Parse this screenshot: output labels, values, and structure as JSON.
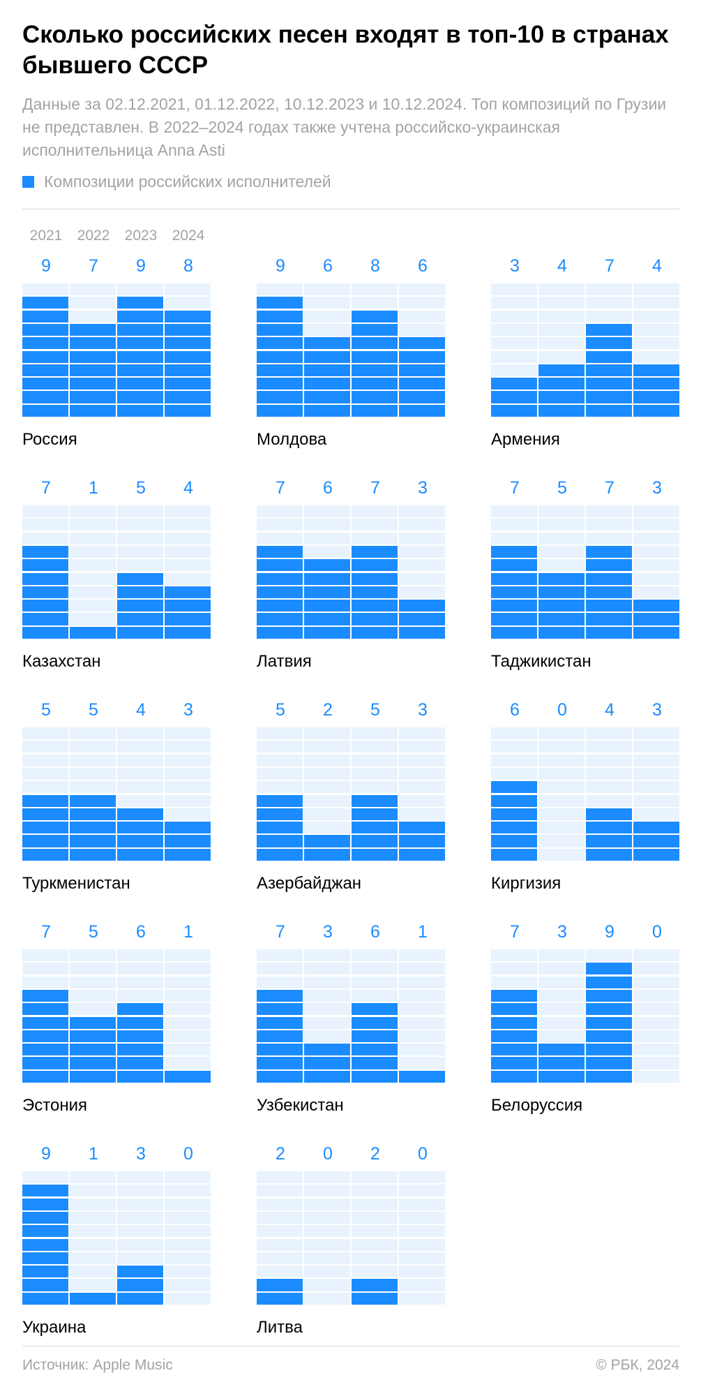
{
  "header": {
    "title": "Сколько российских песен входят в топ-10 в странах бывшего СССР",
    "subtitle": "Данные за 02.12.2021, 01.12.2022, 10.12.2023 и 10.12.2024. Топ композиций по Грузии не представлен. В 2022–2024 годах также учтена российско-украинская исполнительница Anna Asti"
  },
  "legend": {
    "label": "Композиции российских исполнителей"
  },
  "footer": {
    "source": "Источник: Apple Music",
    "copyright": "© РБК, 2024"
  },
  "colors": {
    "filled": "#1a8cff",
    "empty": "#e8f3fd"
  },
  "chart_data": {
    "type": "bar",
    "title": "Сколько российских песен входят в топ-10 в странах бывшего СССР",
    "years": [
      "2021",
      "2022",
      "2023",
      "2024"
    ],
    "ylim": [
      0,
      10
    ],
    "countries": [
      {
        "name": "Россия",
        "values": [
          9,
          7,
          9,
          8
        ]
      },
      {
        "name": "Молдова",
        "values": [
          9,
          6,
          8,
          6
        ]
      },
      {
        "name": "Армения",
        "values": [
          3,
          4,
          7,
          4
        ]
      },
      {
        "name": "Казахстан",
        "values": [
          7,
          1,
          5,
          4
        ]
      },
      {
        "name": "Латвия",
        "values": [
          7,
          6,
          7,
          3
        ]
      },
      {
        "name": "Таджикистан",
        "values": [
          7,
          5,
          7,
          3
        ]
      },
      {
        "name": "Туркменистан",
        "values": [
          5,
          5,
          4,
          3
        ]
      },
      {
        "name": "Азербайджан",
        "values": [
          5,
          2,
          5,
          3
        ]
      },
      {
        "name": "Киргизия",
        "values": [
          6,
          0,
          4,
          3
        ]
      },
      {
        "name": "Эстония",
        "values": [
          7,
          5,
          6,
          1
        ]
      },
      {
        "name": "Узбекистан",
        "values": [
          7,
          3,
          6,
          1
        ]
      },
      {
        "name": "Белоруссия",
        "values": [
          7,
          3,
          9,
          0
        ]
      },
      {
        "name": "Украина",
        "values": [
          9,
          1,
          3,
          0
        ]
      },
      {
        "name": "Литва",
        "values": [
          2,
          0,
          2,
          0
        ]
      }
    ]
  }
}
